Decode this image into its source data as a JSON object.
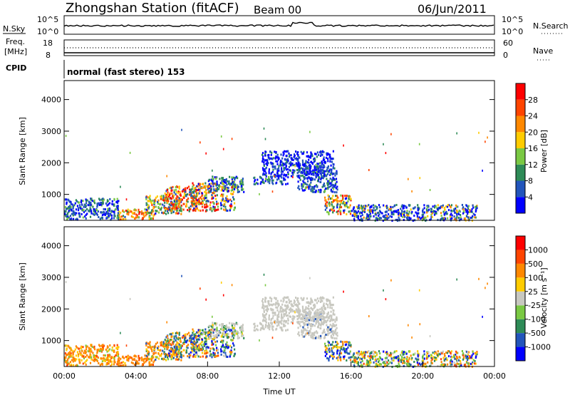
{
  "header": {
    "station": "Zhongshan Station (fitACF)",
    "beam": "Beam 00",
    "date": "06/Jun/2011"
  },
  "top_panels": {
    "nsky_label": "N.Sky",
    "nsky_ticks": [
      "10^5",
      "10^0"
    ],
    "nsearch_label": "N.Search",
    "freq_label_1": "Freq.",
    "freq_label_2": "[MHz]",
    "freq_ticks": [
      "18",
      "8"
    ],
    "nave_label": "Nave",
    "nave_ticks": [
      "60",
      "0"
    ],
    "cpid_label": "CPID",
    "cpid_text": "normal (fast stereo) 153"
  },
  "chart_data": [
    {
      "type": "heatmap",
      "panel": "power",
      "ylabel": "Slant Range [km]",
      "xlabel": "",
      "xlim": [
        0,
        24
      ],
      "ylim": [
        180,
        4600
      ],
      "yticks": [
        "4000",
        "3000",
        "2000",
        "1000"
      ],
      "colorbar_label": "Power [dB]",
      "colorbar_ticks": [
        "28",
        "24",
        "20",
        "16",
        "12",
        "8",
        "4"
      ],
      "colors": [
        "#0000ff",
        "#2255bb",
        "#2e8b57",
        "#7ac943",
        "#ffcc00",
        "#ff8800",
        "#ff4400",
        "#ff0000"
      ],
      "regions": [
        {
          "t0": 3.0,
          "t1": 5.0,
          "r0": 230,
          "r1": 560,
          "weights": [
            0,
            1,
            2,
            3,
            4,
            5,
            6,
            3
          ]
        },
        {
          "t0": 4.5,
          "t1": 6.5,
          "r0": 400,
          "r1": 1000,
          "weights": [
            1,
            2,
            4,
            4,
            3,
            3,
            2,
            1
          ]
        },
        {
          "t0": 5.5,
          "t1": 7.5,
          "r0": 500,
          "r1": 1300,
          "weights": [
            1,
            2,
            3,
            3,
            4,
            4,
            5,
            6
          ]
        },
        {
          "t0": 7.0,
          "t1": 9.5,
          "r0": 500,
          "r1": 1400,
          "weights": [
            2,
            3,
            4,
            3,
            3,
            4,
            4,
            3
          ]
        },
        {
          "t0": 8.0,
          "t1": 10.0,
          "r0": 1100,
          "r1": 1600,
          "weights": [
            3,
            5,
            4,
            2,
            1,
            0,
            0,
            0
          ]
        },
        {
          "t0": 10.5,
          "t1": 12.5,
          "r0": 1350,
          "r1": 1600,
          "weights": [
            4,
            5,
            3,
            1,
            0,
            0,
            0,
            0
          ]
        },
        {
          "t0": 13.0,
          "t1": 15.2,
          "r0": 1100,
          "r1": 1900,
          "weights": [
            5,
            6,
            3,
            1,
            0,
            0,
            0,
            0
          ]
        },
        {
          "t0": 14.5,
          "t1": 16.0,
          "r0": 400,
          "r1": 1000,
          "weights": [
            1,
            2,
            3,
            3,
            4,
            4,
            3,
            1
          ]
        },
        {
          "t0": 11.0,
          "t1": 15.0,
          "r0": 1600,
          "r1": 2400,
          "weights": [
            5,
            3,
            1,
            0,
            0,
            0,
            0,
            0
          ]
        },
        {
          "t0": 0.0,
          "t1": 3.0,
          "r0": 230,
          "r1": 900,
          "weights": [
            3,
            3,
            2,
            1,
            0,
            0,
            0,
            0
          ]
        },
        {
          "t0": 16.0,
          "t1": 23.0,
          "r0": 200,
          "r1": 700,
          "weights": [
            4,
            3,
            2,
            1,
            1,
            1,
            0,
            0
          ]
        }
      ]
    },
    {
      "type": "heatmap",
      "panel": "velocity",
      "ylabel": "Slant Range [km]",
      "xlabel": "Time UT",
      "xlim": [
        0,
        24
      ],
      "ylim": [
        180,
        4600
      ],
      "yticks": [
        "4000",
        "3000",
        "2000",
        "1000"
      ],
      "xticks": [
        "00:00",
        "04:00",
        "08:00",
        "12:00",
        "16:00",
        "20:00",
        "00:00"
      ],
      "colorbar_label": "Velocity [m s⁻¹]",
      "colorbar_ticks": [
        "1000",
        "500",
        "100",
        "25",
        "-25",
        "-100",
        "-500",
        "-1000"
      ],
      "colors": [
        "#0000ff",
        "#2255bb",
        "#2e8b57",
        "#7ac943",
        "#c8c8c0",
        "#ffcc00",
        "#ff8800",
        "#ff4400",
        "#ff0000"
      ],
      "regions": [
        {
          "t0": 3.0,
          "t1": 5.0,
          "r0": 230,
          "r1": 560,
          "weights": [
            0,
            0,
            0,
            0,
            0,
            1,
            6,
            2,
            0
          ]
        },
        {
          "t0": 4.5,
          "t1": 6.5,
          "r0": 400,
          "r1": 1000,
          "weights": [
            0,
            1,
            1,
            1,
            0,
            2,
            6,
            1,
            0
          ]
        },
        {
          "t0": 5.5,
          "t1": 7.5,
          "r0": 500,
          "r1": 1300,
          "weights": [
            1,
            3,
            3,
            2,
            0,
            2,
            4,
            1,
            0
          ]
        },
        {
          "t0": 7.0,
          "t1": 9.5,
          "r0": 500,
          "r1": 1400,
          "weights": [
            2,
            4,
            3,
            2,
            1,
            2,
            2,
            1,
            0
          ]
        },
        {
          "t0": 8.0,
          "t1": 10.0,
          "r0": 1100,
          "r1": 1600,
          "weights": [
            0,
            0,
            1,
            1,
            6,
            1,
            0,
            0,
            0
          ]
        },
        {
          "t0": 10.5,
          "t1": 12.5,
          "r0": 1350,
          "r1": 1600,
          "weights": [
            0,
            0,
            0,
            0,
            7,
            0,
            0,
            0,
            0
          ]
        },
        {
          "t0": 13.0,
          "t1": 15.2,
          "r0": 1100,
          "r1": 1900,
          "weights": [
            0,
            1,
            0,
            0,
            8,
            0,
            0,
            0,
            0
          ]
        },
        {
          "t0": 14.5,
          "t1": 16.0,
          "r0": 400,
          "r1": 1000,
          "weights": [
            2,
            4,
            2,
            1,
            0,
            2,
            2,
            0,
            0
          ]
        },
        {
          "t0": 11.0,
          "t1": 15.0,
          "r0": 1600,
          "r1": 2400,
          "weights": [
            0,
            0,
            0,
            0,
            6,
            0,
            0,
            0,
            0
          ]
        },
        {
          "t0": 0.0,
          "t1": 3.0,
          "r0": 230,
          "r1": 900,
          "weights": [
            0,
            0,
            0,
            1,
            0,
            2,
            5,
            1,
            0
          ]
        },
        {
          "t0": 16.0,
          "t1": 23.0,
          "r0": 200,
          "r1": 700,
          "weights": [
            1,
            1,
            2,
            2,
            1,
            2,
            2,
            1,
            0
          ]
        }
      ]
    }
  ]
}
